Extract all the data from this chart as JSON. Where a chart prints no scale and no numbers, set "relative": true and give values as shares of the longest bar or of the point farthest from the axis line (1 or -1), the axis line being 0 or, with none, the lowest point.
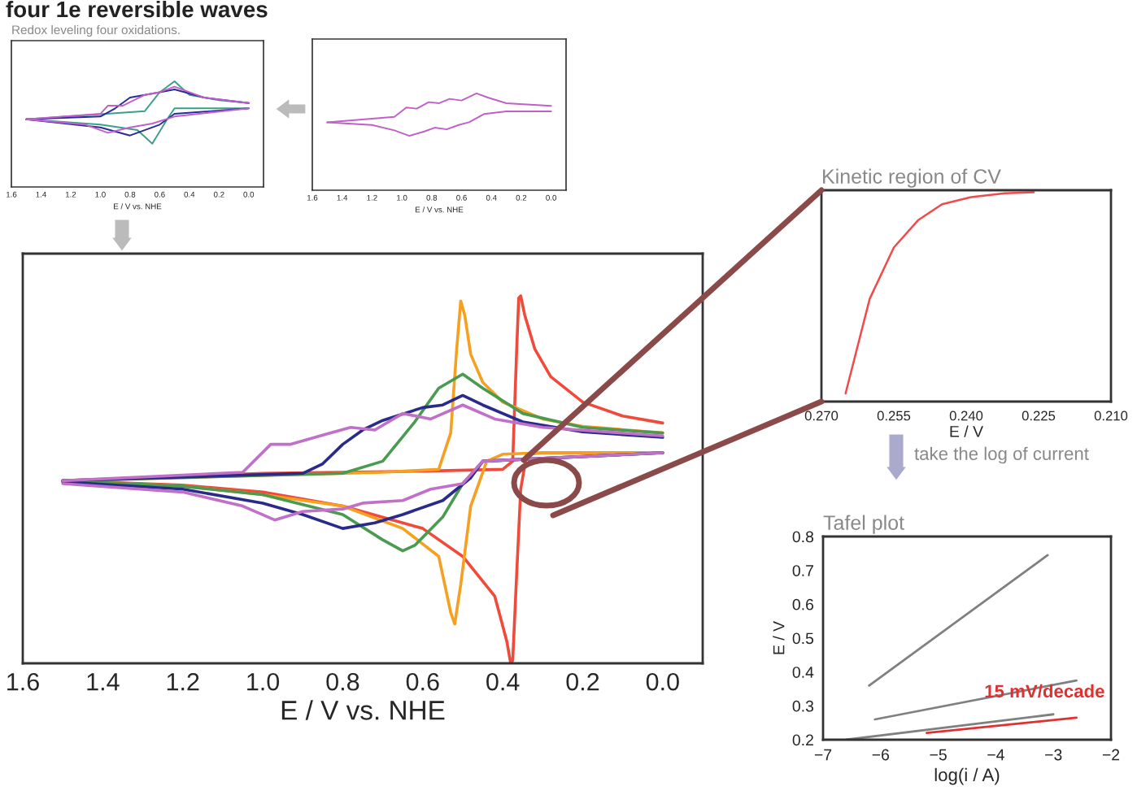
{
  "chart_data": [
    {
      "type": "line",
      "title": "four 1e reversible waves",
      "subtitle": "Redox leveling four oxidations.",
      "xlabel": "E / V vs. NHE",
      "relative": true,
      "tick_labels": "x",
      "xlim": [
        1.6,
        -0.1
      ],
      "xticks": [
        1.6,
        1.4,
        1.2,
        {
          "value": 1.0,
          "label": "1.0"
        },
        0.8,
        0.6,
        0.4,
        0.2,
        {
          "value": 0.0,
          "label": "0.0"
        }
      ],
      "series": [
        {
          "color": "#3aa08a",
          "x": [
            1.5,
            0.7,
            0.6,
            0.5,
            0.4,
            0.2,
            0.0
          ],
          "values": [
            0.641,
            0.718,
            0.897,
            1.0,
            0.872,
            0.821,
            0.795
          ]
        },
        {
          "color": "#3aa08a",
          "x": [
            0.0,
            0.5,
            0.55,
            0.65,
            0.75,
            1.0,
            1.5
          ],
          "values": [
            0.744,
            0.744,
            0.641,
            0.41,
            0.538,
            0.59,
            0.641
          ]
        },
        {
          "color": "#2a2a9a",
          "x": [
            1.5,
            1.0,
            0.9,
            0.8,
            0.6,
            0.5,
            0.3,
            0.0
          ],
          "values": [
            0.641,
            0.667,
            0.744,
            0.846,
            0.897,
            0.923,
            0.846,
            0.795
          ]
        },
        {
          "color": "#2a2a9a",
          "x": [
            0.0,
            0.5,
            0.6,
            0.8,
            1.0,
            1.5
          ],
          "values": [
            0.744,
            0.692,
            0.59,
            0.487,
            0.564,
            0.641
          ]
        },
        {
          "color": "#c060c8",
          "x": [
            1.5,
            1.0,
            0.95,
            0.85,
            0.7,
            0.6,
            0.5,
            0.3,
            0.0
          ],
          "values": [
            0.641,
            0.692,
            0.769,
            0.769,
            0.872,
            0.897,
            0.949,
            0.846,
            0.795
          ]
        },
        {
          "color": "#c060c8",
          "x": [
            0.0,
            0.5,
            0.65,
            0.8,
            0.95,
            1.1,
            1.5
          ],
          "values": [
            0.744,
            0.667,
            0.6,
            0.564,
            0.513,
            0.59,
            0.641
          ]
        }
      ]
    },
    {
      "type": "line",
      "xlabel": "E / V vs. NHE",
      "relative": true,
      "tick_labels": "x",
      "xlim": [
        1.6,
        -0.1
      ],
      "xticks": [
        1.6,
        1.4,
        1.2,
        {
          "value": 1.0,
          "label": "1.0"
        },
        0.8,
        0.6,
        0.4,
        0.2,
        {
          "value": 0.0,
          "label": "0.0"
        }
      ],
      "series": [
        {
          "color": "#c060c8",
          "x": [
            1.5,
            1.05,
            0.97,
            0.9,
            0.82,
            0.75,
            0.68,
            0.6,
            0.5,
            0.42,
            0.3,
            0.0
          ],
          "values": [
            0.702,
            0.758,
            0.854,
            0.843,
            0.91,
            0.899,
            0.944,
            0.927,
            1.0,
            0.955,
            0.899,
            0.871
          ]
        },
        {
          "color": "#c060c8",
          "x": [
            0.0,
            0.3,
            0.45,
            0.55,
            0.62,
            0.7,
            0.78,
            0.85,
            0.95,
            1.05,
            1.2,
            1.5
          ],
          "values": [
            0.815,
            0.815,
            0.787,
            0.702,
            0.674,
            0.629,
            0.646,
            0.607,
            0.562,
            0.618,
            0.674,
            0.702
          ]
        }
      ]
    },
    {
      "type": "line",
      "xlabel": "E / V vs. NHE",
      "relative": true,
      "tick_labels": "x",
      "xlim": [
        1.6,
        -0.1
      ],
      "xticks": [
        1.6,
        1.4,
        1.2,
        {
          "value": 1.0,
          "label": "1.0"
        },
        0.8,
        0.6,
        0.4,
        0.2,
        {
          "value": 0.0,
          "label": "0.0"
        }
      ],
      "series": [
        {
          "color": "#f04a3a",
          "x": [
            1.5,
            1.0,
            0.6,
            0.4,
            0.375,
            0.365,
            0.36,
            0.355,
            0.345,
            0.32,
            0.28,
            0.2,
            0.1,
            0.0
          ],
          "values": [
            0.497,
            0.517,
            0.523,
            0.528,
            0.55,
            0.856,
            0.994,
            1.0,
            0.948,
            0.856,
            0.78,
            0.711,
            0.673,
            0.654
          ]
        },
        {
          "color": "#f04a3a",
          "x": [
            0.0,
            0.2,
            0.3,
            0.34,
            0.355,
            0.365,
            0.375,
            0.38,
            0.39,
            0.42,
            0.5,
            0.6,
            0.8,
            1.0,
            1.2,
            1.5
          ],
          "values": [
            0.573,
            0.573,
            0.573,
            0.569,
            0.474,
            0.245,
            0.008,
            0.0,
            0.061,
            0.183,
            0.291,
            0.367,
            0.428,
            0.466,
            0.485,
            0.497
          ]
        },
        {
          "color": "#f5a020",
          "x": [
            1.5,
            0.7,
            0.56,
            0.53,
            0.515,
            0.505,
            0.495,
            0.48,
            0.45,
            0.4,
            0.3,
            0.2,
            0.0
          ],
          "values": [
            0.497,
            0.52,
            0.528,
            0.627,
            0.856,
            0.986,
            0.948,
            0.841,
            0.765,
            0.711,
            0.665,
            0.645,
            0.627
          ]
        },
        {
          "color": "#f5a020",
          "x": [
            0.0,
            0.3,
            0.4,
            0.44,
            0.48,
            0.505,
            0.52,
            0.53,
            0.56,
            0.65,
            0.8,
            1.0,
            1.2,
            1.5
          ],
          "values": [
            0.573,
            0.573,
            0.569,
            0.55,
            0.428,
            0.214,
            0.107,
            0.138,
            0.291,
            0.367,
            0.428,
            0.459,
            0.482,
            0.497
          ]
        },
        {
          "color": "#4a9a50",
          "x": [
            1.5,
            0.8,
            0.7,
            0.62,
            0.56,
            0.5,
            0.45,
            0.35,
            0.2,
            0.0
          ],
          "values": [
            0.497,
            0.517,
            0.55,
            0.657,
            0.749,
            0.787,
            0.749,
            0.68,
            0.642,
            0.627
          ]
        },
        {
          "color": "#4a9a50",
          "x": [
            0.0,
            0.45,
            0.5,
            0.55,
            0.62,
            0.65,
            0.7,
            0.8,
            1.0,
            1.2,
            1.5
          ],
          "values": [
            0.573,
            0.55,
            0.489,
            0.398,
            0.321,
            0.306,
            0.336,
            0.405,
            0.459,
            0.482,
            0.497
          ]
        },
        {
          "color": "#2a2a8a",
          "x": [
            1.5,
            0.9,
            0.85,
            0.8,
            0.75,
            0.7,
            0.6,
            0.55,
            0.5,
            0.45,
            0.35,
            0.2,
            0.0
          ],
          "values": [
            0.497,
            0.517,
            0.543,
            0.596,
            0.635,
            0.661,
            0.696,
            0.703,
            0.729,
            0.703,
            0.657,
            0.63,
            0.615
          ]
        },
        {
          "color": "#2a2a8a",
          "x": [
            0.0,
            0.45,
            0.48,
            0.55,
            0.65,
            0.72,
            0.8,
            0.9,
            1.0,
            1.2,
            1.5
          ],
          "values": [
            0.573,
            0.55,
            0.505,
            0.443,
            0.405,
            0.382,
            0.367,
            0.405,
            0.436,
            0.474,
            0.494
          ]
        },
        {
          "color": "#c070c8",
          "x": [
            1.5,
            1.05,
            0.98,
            0.93,
            0.83,
            0.78,
            0.72,
            0.65,
            0.58,
            0.5,
            0.42,
            0.3,
            0.0
          ],
          "values": [
            0.497,
            0.52,
            0.596,
            0.596,
            0.627,
            0.642,
            0.635,
            0.68,
            0.665,
            0.703,
            0.665,
            0.642,
            0.619
          ]
        },
        {
          "color": "#c070c8",
          "x": [
            0.0,
            0.45,
            0.5,
            0.58,
            0.65,
            0.75,
            0.8,
            0.9,
            0.97,
            1.05,
            1.2,
            1.5
          ],
          "values": [
            0.573,
            0.55,
            0.489,
            0.474,
            0.443,
            0.436,
            0.42,
            0.413,
            0.39,
            0.428,
            0.466,
            0.489
          ]
        }
      ]
    },
    {
      "type": "line",
      "title": "Kinetic region of CV",
      "xlabel": "E / V",
      "relative": true,
      "tick_labels": "x",
      "xlim": [
        0.27,
        0.21
      ],
      "xticks": [
        {
          "value": 0.27,
          "label": "0.270"
        },
        {
          "value": 0.255,
          "label": "0.255"
        },
        {
          "value": 0.24,
          "label": "0.240"
        },
        {
          "value": 0.225,
          "label": "0.225"
        },
        {
          "value": 0.21,
          "label": "0.210"
        }
      ],
      "series": [
        {
          "color": "#f04a4a",
          "x": [
            0.265,
            0.26,
            0.255,
            0.25,
            0.245,
            0.239,
            0.232,
            0.226
          ],
          "values": [
            0.039,
            0.491,
            0.736,
            0.866,
            0.943,
            0.977,
            0.995,
            1.0
          ]
        }
      ]
    },
    {
      "type": "line",
      "title": "Tafel plot",
      "xlabel": "log(i / A)",
      "ylabel": "E / V",
      "xlim": [
        -7,
        -2
      ],
      "ylim": [
        0.2,
        0.8
      ],
      "xticks": [
        {
          "value": -7,
          "label": "−7"
        },
        {
          "value": -6,
          "label": "−6"
        },
        {
          "value": -5,
          "label": "−5"
        },
        {
          "value": -4,
          "label": "−4"
        },
        {
          "value": -3,
          "label": "−3"
        },
        {
          "value": -2,
          "label": "−2"
        }
      ],
      "yticks": [
        0.2,
        0.3,
        0.4,
        0.5,
        0.6,
        0.7,
        0.8
      ],
      "annotations": [
        "take the log of current",
        {
          "text": "15 mV/decade",
          "x": -4.2,
          "y": 0.325
        }
      ],
      "series": [
        {
          "color": "#808080",
          "x": [
            -6.2,
            -3.1
          ],
          "values": [
            0.36,
            0.745
          ]
        },
        {
          "color": "#808080",
          "x": [
            -6.1,
            -2.6
          ],
          "values": [
            0.26,
            0.375
          ]
        },
        {
          "color": "#808080",
          "x": [
            -6.6,
            -3.0
          ],
          "values": [
            0.2,
            0.275
          ]
        },
        {
          "color": "#e03030",
          "x": [
            -5.2,
            -2.6
          ],
          "values": [
            0.22,
            0.265
          ]
        }
      ]
    }
  ]
}
